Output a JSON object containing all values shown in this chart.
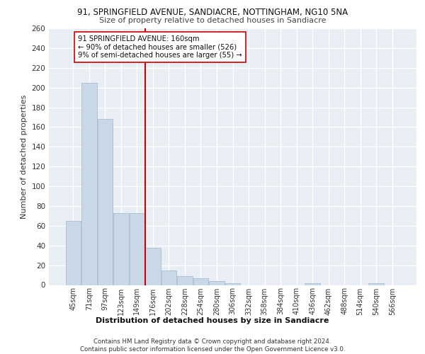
{
  "title1": "91, SPRINGFIELD AVENUE, SANDIACRE, NOTTINGHAM, NG10 5NA",
  "title2": "Size of property relative to detached houses in Sandiacre",
  "xlabel": "Distribution of detached houses by size in Sandiacre",
  "ylabel": "Number of detached properties",
  "categories": [
    "45sqm",
    "71sqm",
    "97sqm",
    "123sqm",
    "149sqm",
    "176sqm",
    "202sqm",
    "228sqm",
    "254sqm",
    "280sqm",
    "306sqm",
    "332sqm",
    "358sqm",
    "384sqm",
    "410sqm",
    "436sqm",
    "462sqm",
    "488sqm",
    "514sqm",
    "540sqm",
    "566sqm"
  ],
  "values": [
    65,
    205,
    168,
    73,
    73,
    38,
    15,
    9,
    7,
    4,
    2,
    0,
    0,
    0,
    0,
    2,
    0,
    0,
    0,
    2,
    0
  ],
  "bar_color": "#c8d8e8",
  "bar_edge_color": "#a0b8d0",
  "vline_x": 4.5,
  "vline_color": "#cc0000",
  "annotation_text": "91 SPRINGFIELD AVENUE: 160sqm\n← 90% of detached houses are smaller (526)\n9% of semi-detached houses are larger (55) →",
  "annotation_box_color": "#ffffff",
  "annotation_box_edge": "#cc0000",
  "bg_color": "#e8eef4",
  "grid_color": "#ffffff",
  "footer": "Contains HM Land Registry data © Crown copyright and database right 2024.\nContains public sector information licensed under the Open Government Licence v3.0.",
  "ylim": [
    0,
    260
  ],
  "yticks": [
    0,
    20,
    40,
    60,
    80,
    100,
    120,
    140,
    160,
    180,
    200,
    220,
    240,
    260
  ]
}
